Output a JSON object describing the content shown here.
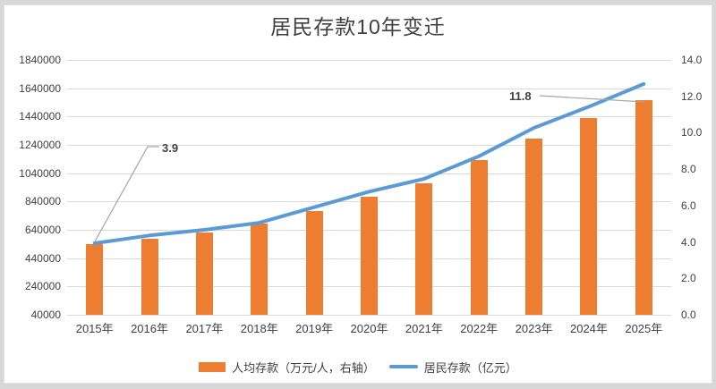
{
  "chart_data": {
    "type": "combo",
    "title": "居民存款10年变迁",
    "categories": [
      "2015年",
      "2016年",
      "2017年",
      "2018年",
      "2019年",
      "2020年",
      "2021年",
      "2022年",
      "2023年",
      "2024年",
      "2025年"
    ],
    "series": [
      {
        "name": "人均存款（万元/人，右轴）",
        "type": "bar",
        "axis": "right",
        "color": "#ED7D31",
        "values": [
          3.9,
          4.2,
          4.5,
          5.0,
          5.7,
          6.5,
          7.2,
          8.5,
          9.7,
          10.8,
          11.8
        ]
      },
      {
        "name": "居民存款（亿元）",
        "type": "line",
        "axis": "left",
        "color": "#5B9BD5",
        "values": [
          545000,
          600000,
          640000,
          690000,
          800000,
          910000,
          1000000,
          1160000,
          1360000,
          1510000,
          1670000
        ]
      }
    ],
    "left_axis": {
      "min": 40000,
      "max": 1840000,
      "tick_labels": [
        "1840000",
        "1640000",
        "1440000",
        "1240000",
        "1040000",
        "840000",
        "640000",
        "440000",
        "240000",
        "40000"
      ]
    },
    "right_axis": {
      "min": 0.0,
      "max": 14.0,
      "tick_labels": [
        "14.0",
        "12.0",
        "10.0",
        "8.0",
        "6.0",
        "4.0",
        "2.0",
        "0.0"
      ]
    },
    "annotations": [
      {
        "text": "3.9",
        "series": "人均存款（万元/人，右轴）",
        "category": "2015年"
      },
      {
        "text": "11.8",
        "series": "人均存款（万元/人，右轴）",
        "category": "2025年"
      }
    ],
    "legend_position": "bottom",
    "grid": "horizontal"
  },
  "colors": {
    "bar": "#ED7D31",
    "line": "#5B9BD5",
    "grid": "#D9D9D9",
    "text": "#404040",
    "leader": "#A6A6A6",
    "panel": "#FFFFFF",
    "surround": "#D8D8D8"
  }
}
